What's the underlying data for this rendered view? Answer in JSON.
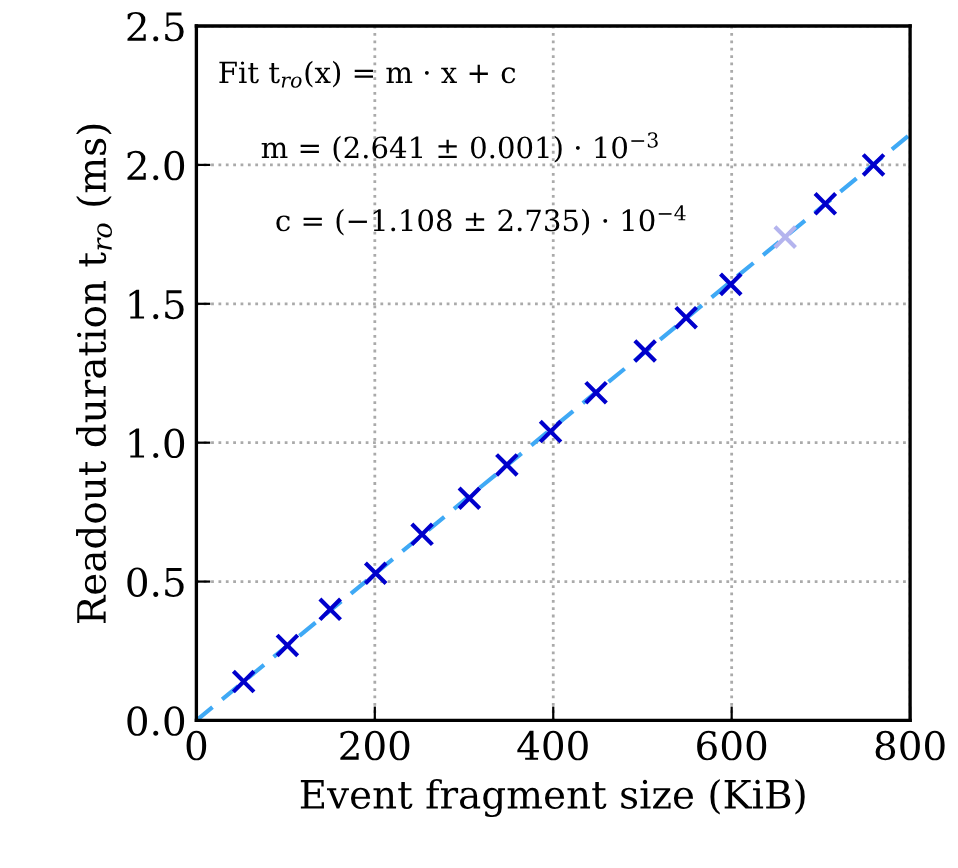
{
  "chart_data": {
    "type": "scatter",
    "xlabel": "Event fragment size (KiB)",
    "ylabel": "Readout duration t$_{ro}$ (ms)",
    "annotations": [
      "Fit t$_{ro}$(x) = m · x + c",
      "m = (2.641 ± 0.001) · 10$^{−3}$",
      "c = (−1.108 ± 2.735) · 10$^{−4}$"
    ],
    "series": [
      {
        "marker": "cross",
        "colors": [
          "#0000cc",
          "#0000cc",
          "#0000cc",
          "#0000cc",
          "#0000cc",
          "#0000cc",
          "#0000cc",
          "#0000cc",
          "#0000cc",
          "#0000cc",
          "#0000cc",
          "#0000cc",
          "#b4b4ee",
          "#0000cc",
          "#0000cc"
        ],
        "x": [
          53,
          102,
          150,
          201,
          253,
          306,
          348,
          397,
          448,
          503,
          549,
          599,
          660,
          705,
          759
        ],
        "values": [
          0.14,
          0.27,
          0.4,
          0.53,
          0.67,
          0.8,
          0.92,
          1.04,
          1.18,
          1.33,
          1.45,
          1.57,
          1.74,
          1.86,
          2.0
        ]
      },
      {
        "type": "line",
        "line_style": "dashed",
        "color": "#3fa9f5",
        "x": [
          0,
          800
        ],
        "values": [
          0.0,
          2.11
        ]
      }
    ],
    "xlim": [
      0,
      800
    ],
    "ylim": [
      0,
      2.5
    ],
    "xticks": [
      0,
      200,
      400,
      600,
      800
    ],
    "yticks": [
      {
        "value": 0,
        "label": "0.0"
      },
      {
        "value": 0.5,
        "label": "0.5"
      },
      {
        "value": 1,
        "label": "1.0"
      },
      {
        "value": 1.5,
        "label": "1.5"
      },
      {
        "value": 2,
        "label": "2.0"
      },
      {
        "value": 2.5,
        "label": "2.5"
      }
    ],
    "grid": true
  }
}
